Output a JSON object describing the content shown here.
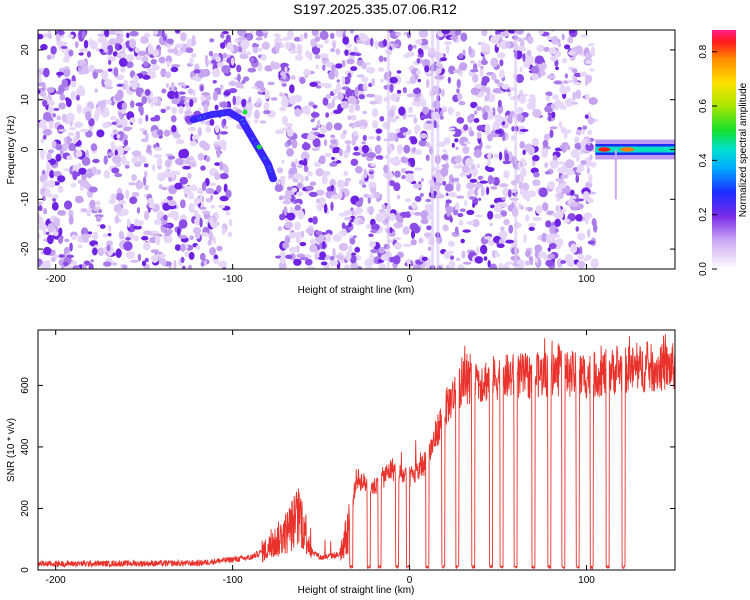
{
  "title": "S197.2025.335.07.06.R12",
  "chart_data": [
    {
      "type": "heatmap",
      "name": "spectrogram",
      "xlabel": "Height of straight line (km)",
      "ylabel": "Frequency (Hz)",
      "xlim": [
        -210,
        150
      ],
      "ylim": [
        -24,
        24
      ],
      "xticks": [
        -200,
        -100,
        0,
        100
      ],
      "yticks": [
        -20,
        -10,
        0,
        10,
        20
      ],
      "colorbar": {
        "label": "Normalized spectral amplitude",
        "range": [
          0.0,
          0.88
        ],
        "ticks": [
          0.0,
          0.2,
          0.4,
          0.6,
          0.8
        ],
        "tick_labels": [
          "0.0",
          "0.2",
          "0.4",
          "0.6",
          "0.8"
        ]
      },
      "features": [
        {
          "desc": "curved signal track",
          "x": [
            -122,
            -112,
            -102,
            -95,
            -90,
            -85,
            -80,
            -77
          ],
          "y": [
            6,
            7,
            7.5,
            6,
            3,
            0,
            -3,
            -6
          ],
          "amplitude": 0.35
        },
        {
          "desc": "strong carrier line",
          "x_range": [
            105,
            150
          ],
          "y": 0,
          "amplitude": 0.85
        },
        {
          "desc": "signal gap (no data)",
          "x_range": [
            -100,
            -74
          ]
        }
      ]
    },
    {
      "type": "line",
      "name": "snr",
      "xlabel": "Height of straight line (km)",
      "ylabel": "SNR (10 * v/v)",
      "xlim": [
        -210,
        150
      ],
      "ylim": [
        0,
        780
      ],
      "xticks": [
        -200,
        -100,
        0,
        100
      ],
      "yticks": [
        0,
        200,
        400,
        600
      ],
      "color": "#e8322b",
      "envelope": {
        "x": [
          -210,
          -120,
          -90,
          -80,
          -70,
          -62,
          -55,
          -50,
          -40,
          -35,
          -30,
          -25,
          -20,
          -15,
          -10,
          -5,
          0,
          5,
          10,
          15,
          20,
          25,
          30,
          40,
          50,
          60,
          70,
          80,
          100,
          120,
          150
        ],
        "y": [
          20,
          22,
          40,
          70,
          120,
          180,
          60,
          40,
          50,
          120,
          300,
          280,
          270,
          300,
          330,
          310,
          300,
          320,
          360,
          440,
          520,
          570,
          610,
          615,
          625,
          630,
          630,
          640,
          630,
          650,
          660
        ]
      },
      "dropouts_x": [
        -33,
        -23,
        -17,
        -7,
        -1,
        10,
        19,
        27,
        36,
        46,
        52,
        60,
        70,
        79,
        87,
        95,
        103,
        112,
        121
      ]
    }
  ]
}
